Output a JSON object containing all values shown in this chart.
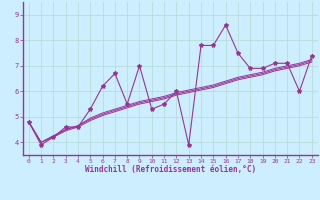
{
  "xlabel": "Windchill (Refroidissement éolien,°C)",
  "bg_color": "#cceeff",
  "grid_color": "#aaddcc",
  "line_color": "#993399",
  "xlim": [
    -0.5,
    23.5
  ],
  "ylim": [
    3.5,
    9.5
  ],
  "xticks": [
    0,
    1,
    2,
    3,
    4,
    5,
    6,
    7,
    8,
    9,
    10,
    11,
    12,
    13,
    14,
    15,
    16,
    17,
    18,
    19,
    20,
    21,
    22,
    23
  ],
  "yticks": [
    4,
    5,
    6,
    7,
    8,
    9
  ],
  "series": [
    [
      4.8,
      3.9,
      4.2,
      4.6,
      4.6,
      5.3,
      6.2,
      6.7,
      5.5,
      7.0,
      5.3,
      5.5,
      6.0,
      3.9,
      7.8,
      7.8,
      8.6,
      7.5,
      6.9,
      6.9,
      7.1,
      7.1,
      6.0,
      7.4
    ],
    [
      4.8,
      4.0,
      4.25,
      4.5,
      4.65,
      4.9,
      5.1,
      5.25,
      5.4,
      5.55,
      5.65,
      5.75,
      5.9,
      6.0,
      6.1,
      6.2,
      6.35,
      6.5,
      6.6,
      6.7,
      6.85,
      6.95,
      7.05,
      7.2
    ],
    [
      4.8,
      4.0,
      4.25,
      4.5,
      4.65,
      4.95,
      5.15,
      5.3,
      5.45,
      5.6,
      5.7,
      5.8,
      5.95,
      6.05,
      6.15,
      6.25,
      6.4,
      6.55,
      6.65,
      6.75,
      6.9,
      7.0,
      7.1,
      7.25
    ],
    [
      4.8,
      4.0,
      4.2,
      4.45,
      4.6,
      4.85,
      5.05,
      5.2,
      5.35,
      5.5,
      5.6,
      5.7,
      5.85,
      5.95,
      6.05,
      6.15,
      6.3,
      6.45,
      6.55,
      6.65,
      6.8,
      6.9,
      7.0,
      7.15
    ]
  ]
}
